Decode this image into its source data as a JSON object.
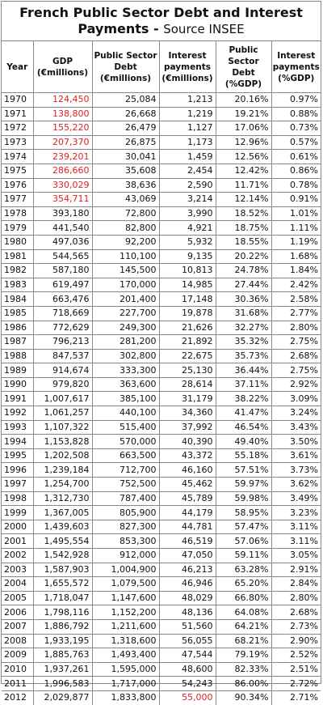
{
  "title": {
    "line1": "French Public Sector Debt and Interest",
    "line2_bold": "Payments - ",
    "line2_source": "Source INSEE"
  },
  "headers": [
    {
      "l1": "Year",
      "l2": "",
      "l3": ""
    },
    {
      "l1": "GDP",
      "l2": "(€millions)",
      "l3": ""
    },
    {
      "l1": "Public Sector",
      "l2": "Debt",
      "l3": "(€millions)"
    },
    {
      "l1": "Interest",
      "l2": "payments",
      "l3": "(€millions)"
    },
    {
      "l1": "Public",
      "l2": "Sector Debt",
      "l3": "(%GDP)"
    },
    {
      "l1": "Interest",
      "l2": "payments",
      "l3": "(%GDP)"
    }
  ],
  "highlight_color": "#e02020",
  "rows": [
    {
      "year": "1970",
      "gdp": "124,450",
      "debt": "25,084",
      "interest": "1,213",
      "debt_pct": "20.16%",
      "int_pct": "0.97%",
      "gdp_red": true
    },
    {
      "year": "1971",
      "gdp": "138,800",
      "debt": "26,668",
      "interest": "1,219",
      "debt_pct": "19.21%",
      "int_pct": "0.88%",
      "gdp_red": true
    },
    {
      "year": "1972",
      "gdp": "155,220",
      "debt": "26,479",
      "interest": "1,127",
      "debt_pct": "17.06%",
      "int_pct": "0.73%",
      "gdp_red": true
    },
    {
      "year": "1973",
      "gdp": "207,370",
      "debt": "26,875",
      "interest": "1,173",
      "debt_pct": "12.96%",
      "int_pct": "0.57%",
      "gdp_red": true
    },
    {
      "year": "1974",
      "gdp": "239,201",
      "debt": "30,041",
      "interest": "1,459",
      "debt_pct": "12.56%",
      "int_pct": "0.61%",
      "gdp_red": true
    },
    {
      "year": "1975",
      "gdp": "286,660",
      "debt": "35,608",
      "interest": "2,454",
      "debt_pct": "12.42%",
      "int_pct": "0.86%",
      "gdp_red": true
    },
    {
      "year": "1976",
      "gdp": "330,029",
      "debt": "38,636",
      "interest": "2,590",
      "debt_pct": "11.71%",
      "int_pct": "0.78%",
      "gdp_red": true
    },
    {
      "year": "1977",
      "gdp": "354,711",
      "debt": "43,069",
      "interest": "3,214",
      "debt_pct": "12.14%",
      "int_pct": "0.91%",
      "gdp_red": true
    },
    {
      "year": "1978",
      "gdp": "393,180",
      "debt": "72,800",
      "interest": "3,990",
      "debt_pct": "18.52%",
      "int_pct": "1.01%"
    },
    {
      "year": "1979",
      "gdp": "441,540",
      "debt": "82,800",
      "interest": "4,921",
      "debt_pct": "18.75%",
      "int_pct": "1.11%"
    },
    {
      "year": "1980",
      "gdp": "497,036",
      "debt": "92,200",
      "interest": "5,932",
      "debt_pct": "18.55%",
      "int_pct": "1.19%"
    },
    {
      "year": "1981",
      "gdp": "544,565",
      "debt": "110,100",
      "interest": "9,135",
      "debt_pct": "20.22%",
      "int_pct": "1.68%"
    },
    {
      "year": "1982",
      "gdp": "587,180",
      "debt": "145,500",
      "interest": "10,813",
      "debt_pct": "24.78%",
      "int_pct": "1.84%"
    },
    {
      "year": "1983",
      "gdp": "619,497",
      "debt": "170,000",
      "interest": "14,985",
      "debt_pct": "27.44%",
      "int_pct": "2.42%"
    },
    {
      "year": "1984",
      "gdp": "663,476",
      "debt": "201,400",
      "interest": "17,148",
      "debt_pct": "30.36%",
      "int_pct": "2.58%"
    },
    {
      "year": "1985",
      "gdp": "718,669",
      "debt": "227,700",
      "interest": "19,878",
      "debt_pct": "31.68%",
      "int_pct": "2.77%"
    },
    {
      "year": "1986",
      "gdp": "772,629",
      "debt": "249,300",
      "interest": "21,626",
      "debt_pct": "32.27%",
      "int_pct": "2.80%"
    },
    {
      "year": "1987",
      "gdp": "796,213",
      "debt": "281,200",
      "interest": "21,892",
      "debt_pct": "35.32%",
      "int_pct": "2.75%"
    },
    {
      "year": "1988",
      "gdp": "847,537",
      "debt": "302,800",
      "interest": "22,675",
      "debt_pct": "35.73%",
      "int_pct": "2.68%"
    },
    {
      "year": "1989",
      "gdp": "914,674",
      "debt": "333,300",
      "interest": "25,130",
      "debt_pct": "36.44%",
      "int_pct": "2.75%"
    },
    {
      "year": "1990",
      "gdp": "979,820",
      "debt": "363,600",
      "interest": "28,614",
      "debt_pct": "37.11%",
      "int_pct": "2.92%"
    },
    {
      "year": "1991",
      "gdp": "1,007,617",
      "debt": "385,100",
      "interest": "31,179",
      "debt_pct": "38.22%",
      "int_pct": "3.09%"
    },
    {
      "year": "1992",
      "gdp": "1,061,257",
      "debt": "440,100",
      "interest": "34,360",
      "debt_pct": "41.47%",
      "int_pct": "3.24%"
    },
    {
      "year": "1993",
      "gdp": "1,107,322",
      "debt": "515,400",
      "interest": "37,992",
      "debt_pct": "46.54%",
      "int_pct": "3.43%"
    },
    {
      "year": "1994",
      "gdp": "1,153,828",
      "debt": "570,000",
      "interest": "40,390",
      "debt_pct": "49.40%",
      "int_pct": "3.50%"
    },
    {
      "year": "1995",
      "gdp": "1,202,508",
      "debt": "663,500",
      "interest": "43,372",
      "debt_pct": "55.18%",
      "int_pct": "3.61%"
    },
    {
      "year": "1996",
      "gdp": "1,239,184",
      "debt": "712,700",
      "interest": "46,160",
      "debt_pct": "57.51%",
      "int_pct": "3.73%"
    },
    {
      "year": "1997",
      "gdp": "1,254,700",
      "debt": "752,500",
      "interest": "45,462",
      "debt_pct": "59.97%",
      "int_pct": "3.62%"
    },
    {
      "year": "1998",
      "gdp": "1,312,730",
      "debt": "787,400",
      "interest": "45,789",
      "debt_pct": "59.98%",
      "int_pct": "3.49%"
    },
    {
      "year": "1999",
      "gdp": "1,367,005",
      "debt": "805,900",
      "interest": "44,179",
      "debt_pct": "58.95%",
      "int_pct": "3.23%"
    },
    {
      "year": "2000",
      "gdp": "1,439,603",
      "debt": "827,300",
      "interest": "44,781",
      "debt_pct": "57.47%",
      "int_pct": "3.11%"
    },
    {
      "year": "2001",
      "gdp": "1,495,554",
      "debt": "853,300",
      "interest": "46,519",
      "debt_pct": "57.06%",
      "int_pct": "3.11%"
    },
    {
      "year": "2002",
      "gdp": "1,542,928",
      "debt": "912,000",
      "interest": "47,050",
      "debt_pct": "59.11%",
      "int_pct": "3.05%"
    },
    {
      "year": "2003",
      "gdp": "1,587,903",
      "debt": "1,004,900",
      "interest": "46,213",
      "debt_pct": "63.28%",
      "int_pct": "2.91%"
    },
    {
      "year": "2004",
      "gdp": "1,655,572",
      "debt": "1,079,500",
      "interest": "46,946",
      "debt_pct": "65.20%",
      "int_pct": "2.84%"
    },
    {
      "year": "2005",
      "gdp": "1,718,047",
      "debt": "1,147,600",
      "interest": "48,029",
      "debt_pct": "66.80%",
      "int_pct": "2.80%"
    },
    {
      "year": "2006",
      "gdp": "1,798,116",
      "debt": "1,152,200",
      "interest": "48,136",
      "debt_pct": "64.08%",
      "int_pct": "2.68%"
    },
    {
      "year": "2007",
      "gdp": "1,886,792",
      "debt": "1,211,600",
      "interest": "51,560",
      "debt_pct": "64.21%",
      "int_pct": "2.73%"
    },
    {
      "year": "2008",
      "gdp": "1,933,195",
      "debt": "1,318,600",
      "interest": "56,055",
      "debt_pct": "68.21%",
      "int_pct": "2.90%"
    },
    {
      "year": "2009",
      "gdp": "1,885,763",
      "debt": "1,493,400",
      "interest": "47,544",
      "debt_pct": "79.19%",
      "int_pct": "2.52%"
    },
    {
      "year": "2010",
      "gdp": "1,937,261",
      "debt": "1,595,000",
      "interest": "48,600",
      "debt_pct": "82.33%",
      "int_pct": "2.51%"
    },
    {
      "year": "2011",
      "gdp": "1,996,583",
      "debt": "1,717,000",
      "interest": "54,243",
      "debt_pct": "86.00%",
      "int_pct": "2.72%"
    },
    {
      "year": "2012",
      "gdp": "2,029,877",
      "debt": "1,833,800",
      "interest": "55,000",
      "debt_pct": "90.34%",
      "int_pct": "2.71%",
      "interest_red": true
    }
  ]
}
